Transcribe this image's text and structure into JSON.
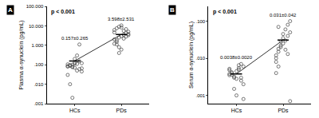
{
  "chart_data": [
    {
      "type": "scatter",
      "panel": "A",
      "annotation": "p < 0.001",
      "y_label": "Plasma α-synuclein (pg/mL)",
      "categories": [
        "HCs",
        "PDs"
      ],
      "groups": [
        [
          0.08,
          0.09,
          0.1,
          0.07,
          0.11,
          0.06,
          0.12,
          0.085,
          0.095,
          0.075,
          0.13,
          0.05,
          0.15,
          0.065,
          0.105,
          0.09,
          0.08,
          0.2,
          0.3,
          1.1,
          0.045,
          0.03,
          0.01,
          0.002,
          0.115
        ],
        [
          1.2,
          1.8,
          2.5,
          3.0,
          3.5,
          4.2,
          5.0,
          6.1,
          7.5,
          9.0,
          10.5,
          2.2,
          2.8,
          3.3,
          4.6,
          1.5,
          0.8,
          0.6,
          5.5,
          6.8,
          3.8,
          2.0,
          1.1,
          0.4,
          8.2
        ]
      ],
      "means": [
        0.157,
        3.598
      ],
      "sd": [
        0.265,
        2.531
      ],
      "mean_labels": [
        "0.157±0.265",
        "3.598±2.531"
      ],
      "log": "y",
      "color": "#555555",
      "marker": "circle-open",
      "ylim": [
        0.001,
        100
      ],
      "yticks": [
        {
          "value": 0.001,
          "label": ".001"
        },
        {
          "value": 0.01,
          "label": ".010"
        },
        {
          "value": 0.1,
          "label": ".100"
        },
        {
          "value": 1,
          "label": "1.000"
        },
        {
          "value": 10,
          "label": "10.000"
        },
        {
          "value": 100,
          "label": "100.000"
        }
      ]
    },
    {
      "type": "scatter",
      "panel": "B",
      "annotation": "p < 0.001",
      "y_label": "Serum α-synuclein (pg/mL)",
      "categories": [
        "HCs",
        "PDs"
      ],
      "groups": [
        [
          0.0035,
          0.004,
          0.003,
          0.0045,
          0.005,
          0.0025,
          0.006,
          0.0038,
          0.0042,
          0.0032,
          0.0028,
          0.0055,
          0.007,
          0.002,
          0.0048,
          0.0036,
          0.0015,
          0.001,
          0.0065,
          0.003,
          0.0008,
          0.0052
        ],
        [
          0.01,
          0.015,
          0.02,
          0.025,
          0.03,
          0.04,
          0.05,
          0.012,
          0.018,
          0.022,
          0.035,
          0.06,
          0.08,
          0.1,
          0.008,
          0.006,
          0.028,
          0.045,
          0.017,
          0.013,
          0.0007,
          0.004,
          0.07
        ]
      ],
      "means": [
        0.0038,
        0.031
      ],
      "sd": [
        0.002,
        0.042
      ],
      "mean_labels": [
        "0.0038±0.0020",
        "0.031±0.042"
      ],
      "log": "y",
      "color": "#555555",
      "marker": "circle-open",
      "ylim": [
        0.0006,
        0.25
      ],
      "yticks": [
        {
          "value": 0.001,
          "label": ".001"
        },
        {
          "value": 0.01,
          "label": ".010"
        },
        {
          "value": 0.1,
          "label": ".100"
        }
      ]
    }
  ]
}
